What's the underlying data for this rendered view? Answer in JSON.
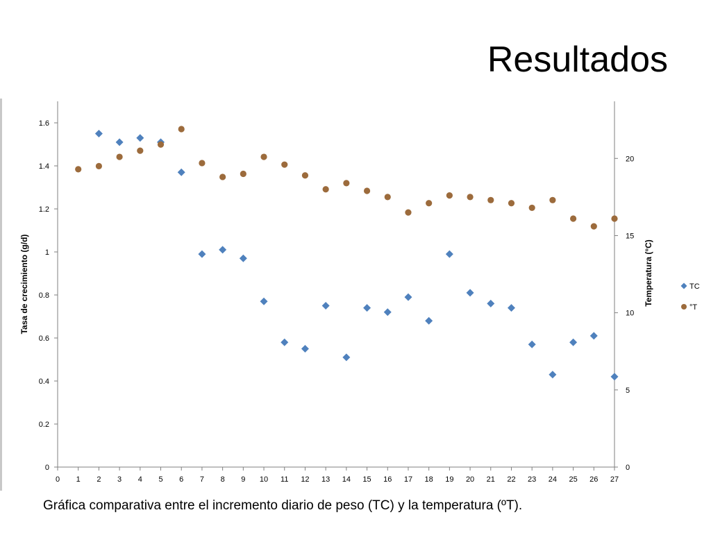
{
  "slide": {
    "title": "Resultados",
    "caption": "Gráfica comparativa entre el incremento diario de peso (TC) y la temperatura (ºT)."
  },
  "chart_data": {
    "type": "scatter",
    "title": "",
    "xlabel": "",
    "ylabel": "Tasa de crecimiento (g/d)",
    "y2label": "Temperatura (°C)",
    "xlim": [
      0,
      27
    ],
    "ylim": [
      0,
      1.7
    ],
    "y2lim": [
      0,
      23.7
    ],
    "x_ticks": [
      0,
      1,
      2,
      3,
      4,
      5,
      6,
      7,
      8,
      9,
      10,
      11,
      12,
      13,
      14,
      15,
      16,
      17,
      18,
      19,
      20,
      21,
      22,
      23,
      24,
      25,
      26,
      27
    ],
    "y_ticks": [
      0,
      0.2,
      0.4,
      0.6,
      0.8,
      1,
      1.2,
      1.4,
      1.6
    ],
    "y_tick_labels": [
      "0",
      "0.2",
      "0.4",
      "0.6",
      "0.8",
      "1",
      "1.2",
      "1.4",
      "1.6"
    ],
    "y2_ticks": [
      0,
      5,
      10,
      15,
      20
    ],
    "y2_tick_labels": [
      "0",
      "5",
      "10",
      "15",
      "20"
    ],
    "grid": false,
    "legend": "right",
    "series": [
      {
        "name": "TC",
        "axis": "left",
        "marker": "diamond",
        "color": "#4f81bd",
        "x": [
          2,
          3,
          4,
          5,
          6,
          7,
          8,
          9,
          10,
          11,
          12,
          13,
          14,
          15,
          16,
          17,
          18,
          19,
          20,
          21,
          22,
          23,
          24,
          25,
          26,
          27
        ],
        "y": [
          1.55,
          1.51,
          1.53,
          1.51,
          1.37,
          0.99,
          1.01,
          0.97,
          0.77,
          0.58,
          0.55,
          0.75,
          0.51,
          0.74,
          0.72,
          0.79,
          0.68,
          0.99,
          0.81,
          0.76,
          0.74,
          0.57,
          0.43,
          0.58,
          0.61,
          0.42
        ]
      },
      {
        "name": "°T",
        "axis": "right",
        "marker": "circle",
        "color": "#9c6b3c",
        "x": [
          1,
          2,
          3,
          4,
          5,
          6,
          7,
          8,
          9,
          10,
          11,
          12,
          13,
          14,
          15,
          16,
          17,
          18,
          19,
          20,
          21,
          22,
          23,
          24,
          25,
          26,
          27
        ],
        "y": [
          19.3,
          19.5,
          20.1,
          20.5,
          20.9,
          21.9,
          19.7,
          18.8,
          19.0,
          20.1,
          19.6,
          18.9,
          18.0,
          18.4,
          17.9,
          17.5,
          16.5,
          17.1,
          17.6,
          17.5,
          17.3,
          17.1,
          16.8,
          17.3,
          16.1,
          15.6,
          16.1
        ]
      }
    ]
  }
}
